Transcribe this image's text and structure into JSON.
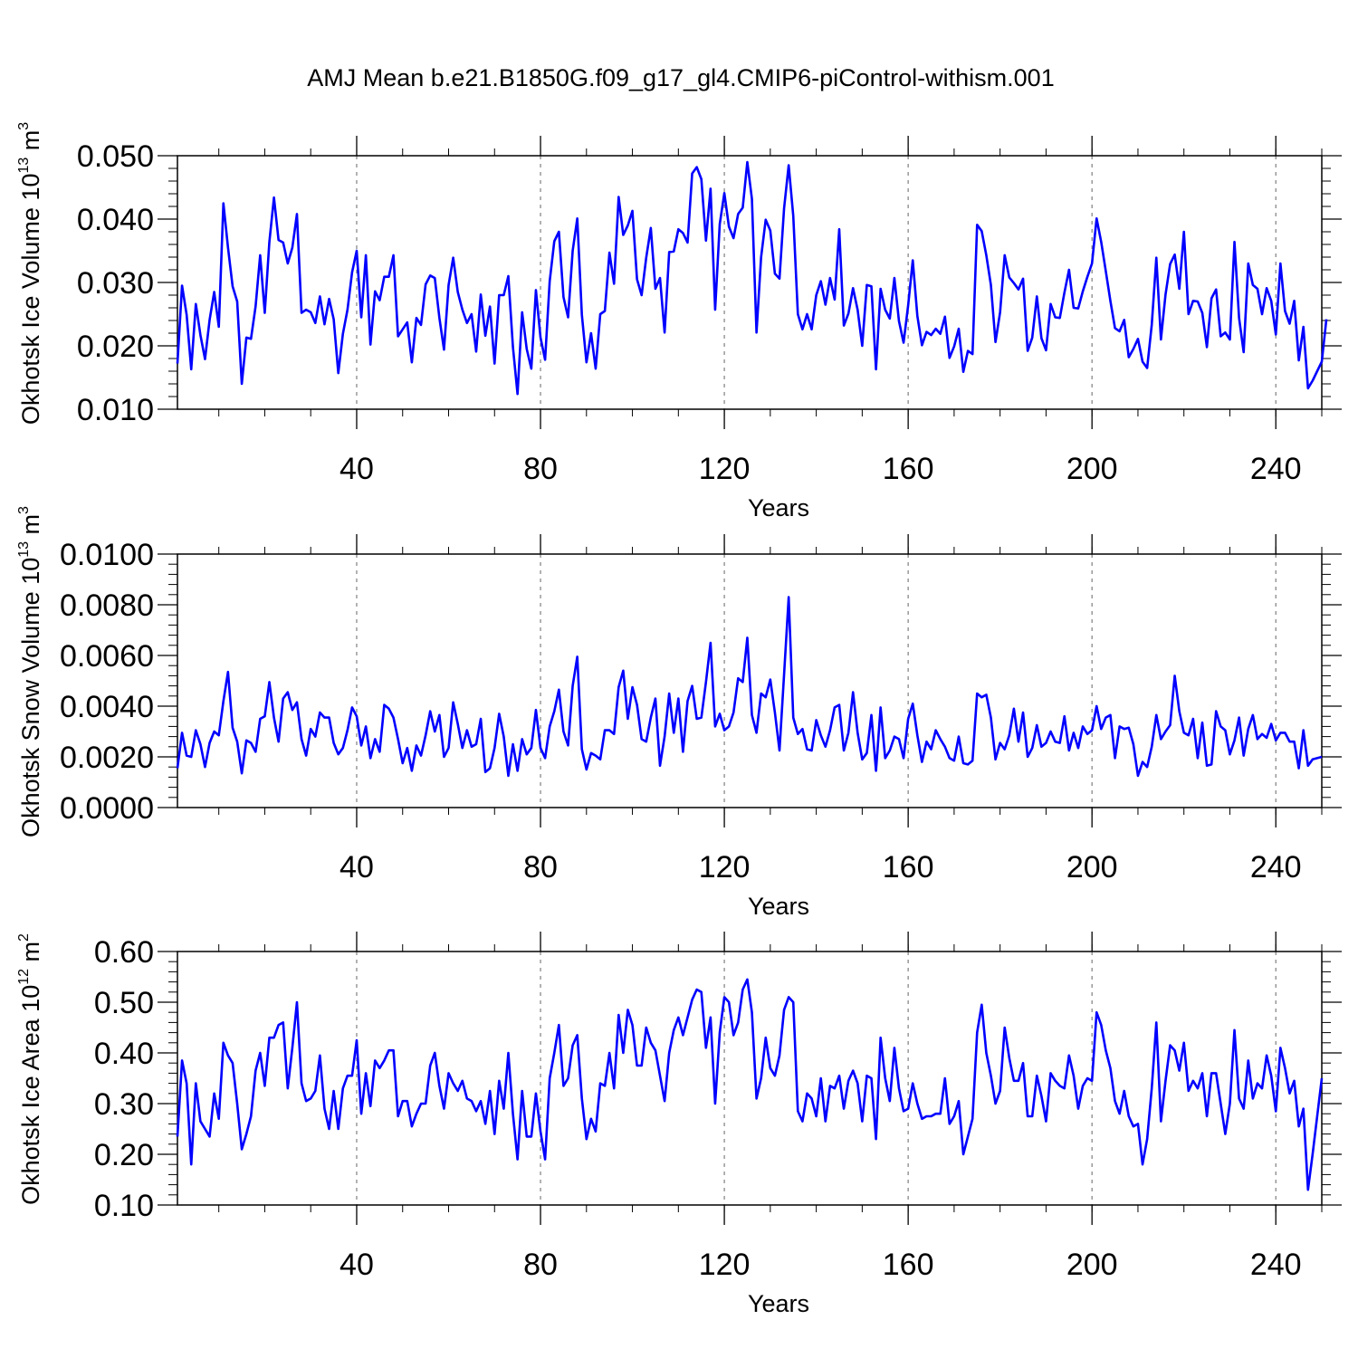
{
  "title": "AMJ Mean b.e21.B1850G.f09_g17_gl4.CMIP6-piControl-withism.001",
  "colors": {
    "series": "#0000ff",
    "axes": "#000000",
    "grid": "#7f7f7f"
  },
  "chart_data": [
    {
      "type": "line",
      "id": "ice-volume",
      "title": "AMJ Mean b.e21.B1850G.f09_g17_gl4.CMIP6-piControl-withism.001",
      "xlabel": "Years",
      "ylabel_main": "Okhotsk Ice Volume 10",
      "ylabel_exp": "13",
      "ylabel_unit": " m",
      "ylabel_unit_exp": "3",
      "xlim": [
        1,
        250
      ],
      "ylim": [
        0.01,
        0.05
      ],
      "xticks": [
        40,
        80,
        120,
        160,
        200,
        240
      ],
      "yticks": [
        0.01,
        0.02,
        0.03,
        0.04,
        0.05
      ],
      "ytick_labels": [
        "0.010",
        "0.020",
        "0.030",
        "0.040",
        "0.050"
      ],
      "ytick_minor": 0.002,
      "grid": "x-dashed",
      "series": [
        {
          "name": "Okhotsk Ice Volume",
          "values": [
            0.0172,
            0.0295,
            0.0249,
            0.0163,
            0.0266,
            0.0217,
            0.0179,
            0.0241,
            0.0285,
            0.023,
            0.0425,
            0.0355,
            0.0294,
            0.027,
            0.014,
            0.0213,
            0.0211,
            0.0262,
            0.0343,
            0.0252,
            0.0364,
            0.0434,
            0.0367,
            0.0363,
            0.033,
            0.0355,
            0.0408,
            0.0252,
            0.0257,
            0.0253,
            0.0236,
            0.0278,
            0.0234,
            0.0274,
            0.0242,
            0.0157,
            0.0219,
            0.0257,
            0.0316,
            0.035,
            0.0245,
            0.0343,
            0.0202,
            0.0286,
            0.0272,
            0.0309,
            0.0309,
            0.0343,
            0.0215,
            0.0226,
            0.0237,
            0.0174,
            0.0244,
            0.0233,
            0.0297,
            0.0311,
            0.0307,
            0.0244,
            0.0194,
            0.0296,
            0.0339,
            0.0285,
            0.0257,
            0.0236,
            0.025,
            0.0191,
            0.0281,
            0.0216,
            0.0262,
            0.0172,
            0.028,
            0.028,
            0.031,
            0.0198,
            0.0124,
            0.0253,
            0.0195,
            0.0164,
            0.0288,
            0.0213,
            0.0178,
            0.0302,
            0.0365,
            0.038,
            0.0277,
            0.0245,
            0.035,
            0.0401,
            0.0249,
            0.0174,
            0.022,
            0.0164,
            0.025,
            0.0255,
            0.0347,
            0.0298,
            0.0435,
            0.0375,
            0.039,
            0.0413,
            0.0305,
            0.028,
            0.0339,
            0.0386,
            0.029,
            0.0307,
            0.0221,
            0.0348,
            0.0349,
            0.0384,
            0.0378,
            0.0363,
            0.0472,
            0.0482,
            0.0463,
            0.0366,
            0.0448,
            0.0257,
            0.0392,
            0.0441,
            0.0388,
            0.037,
            0.0408,
            0.0418,
            0.049,
            0.0432,
            0.0221,
            0.034,
            0.0399,
            0.0382,
            0.0314,
            0.0306,
            0.0417,
            0.0485,
            0.0405,
            0.025,
            0.0226,
            0.025,
            0.0226,
            0.028,
            0.0302,
            0.0265,
            0.0307,
            0.0273,
            0.0384,
            0.0232,
            0.0251,
            0.0291,
            0.0257,
            0.02,
            0.0296,
            0.0294,
            0.0163,
            0.029,
            0.0257,
            0.0243,
            0.0307,
            0.0239,
            0.0205,
            0.0264,
            0.0335,
            0.0247,
            0.0201,
            0.0222,
            0.0217,
            0.0227,
            0.0219,
            0.0246,
            0.0181,
            0.0199,
            0.0227,
            0.0159,
            0.0192,
            0.0187,
            0.0391,
            0.0381,
            0.0343,
            0.0296,
            0.0206,
            0.0253,
            0.0343,
            0.0308,
            0.0299,
            0.0289,
            0.0306,
            0.0192,
            0.0213,
            0.0278,
            0.0212,
            0.0193,
            0.0266,
            0.0245,
            0.0244,
            0.0284,
            0.032,
            0.026,
            0.0259,
            0.0286,
            0.0309,
            0.033,
            0.0401,
            0.0364,
            0.0318,
            0.0271,
            0.0228,
            0.0223,
            0.0241,
            0.0182,
            0.0195,
            0.0211,
            0.0175,
            0.0165,
            0.0233,
            0.0339,
            0.021,
            0.0281,
            0.0329,
            0.0344,
            0.029,
            0.038,
            0.025,
            0.0271,
            0.027,
            0.0252,
            0.0198,
            0.0275,
            0.0289,
            0.0215,
            0.0221,
            0.021,
            0.0364,
            0.0244,
            0.019,
            0.033,
            0.0296,
            0.029,
            0.025,
            0.0291,
            0.0271,
            0.0218,
            0.033,
            0.0255,
            0.0235,
            0.0271,
            0.0177,
            0.023,
            0.0133,
            0.0145,
            0.016,
            0.0175,
            0.0242
          ]
        }
      ]
    },
    {
      "type": "line",
      "id": "snow-volume",
      "xlabel": "Years",
      "ylabel_main": "Okhotsk Snow Volume 10",
      "ylabel_exp": "13",
      "ylabel_unit": " m",
      "ylabel_unit_exp": "3",
      "xlim": [
        1,
        250
      ],
      "ylim": [
        0.0,
        0.01
      ],
      "xticks": [
        40,
        80,
        120,
        160,
        200,
        240
      ],
      "yticks": [
        0.0,
        0.002,
        0.004,
        0.006,
        0.008,
        0.01
      ],
      "ytick_labels": [
        "0.0000",
        "0.0020",
        "0.0040",
        "0.0060",
        "0.0080",
        "0.0100"
      ],
      "ytick_minor": 0.0004,
      "grid": "x-dashed",
      "series": [
        {
          "name": "Okhotsk Snow Volume",
          "values": [
            0.00155,
            0.00295,
            0.00205,
            0.002,
            0.00305,
            0.0025,
            0.0016,
            0.00255,
            0.003,
            0.00285,
            0.0042,
            0.00535,
            0.00315,
            0.0026,
            0.00135,
            0.00265,
            0.00255,
            0.0022,
            0.0035,
            0.0036,
            0.00495,
            0.00355,
            0.0026,
            0.0043,
            0.00455,
            0.00385,
            0.00415,
            0.0027,
            0.00205,
            0.0031,
            0.0028,
            0.00375,
            0.00355,
            0.00355,
            0.00255,
            0.0021,
            0.00235,
            0.00305,
            0.00395,
            0.0036,
            0.00245,
            0.0032,
            0.00195,
            0.0027,
            0.0022,
            0.00405,
            0.0039,
            0.00355,
            0.0027,
            0.00175,
            0.00235,
            0.00145,
            0.00245,
            0.00205,
            0.00285,
            0.0038,
            0.003,
            0.00365,
            0.002,
            0.00235,
            0.00415,
            0.0033,
            0.00235,
            0.00305,
            0.0024,
            0.0025,
            0.0035,
            0.0014,
            0.00155,
            0.00235,
            0.0037,
            0.0028,
            0.00125,
            0.0025,
            0.00145,
            0.0027,
            0.0021,
            0.00235,
            0.00385,
            0.00235,
            0.00195,
            0.0032,
            0.0038,
            0.00465,
            0.003,
            0.00245,
            0.0048,
            0.00595,
            0.0023,
            0.0015,
            0.00215,
            0.00205,
            0.0019,
            0.00305,
            0.00305,
            0.0029,
            0.00475,
            0.0054,
            0.0035,
            0.00475,
            0.00405,
            0.0027,
            0.0026,
            0.00355,
            0.0043,
            0.00165,
            0.0028,
            0.0045,
            0.00295,
            0.0043,
            0.0022,
            0.0042,
            0.0048,
            0.0035,
            0.00355,
            0.00495,
            0.0065,
            0.0032,
            0.0037,
            0.00305,
            0.0032,
            0.00375,
            0.0051,
            0.00495,
            0.0067,
            0.00365,
            0.00295,
            0.0045,
            0.00435,
            0.00505,
            0.00375,
            0.00225,
            0.00525,
            0.0083,
            0.00355,
            0.0029,
            0.0031,
            0.0023,
            0.00225,
            0.00345,
            0.00285,
            0.0024,
            0.00305,
            0.00395,
            0.00405,
            0.00225,
            0.00295,
            0.00455,
            0.00295,
            0.0019,
            0.00215,
            0.00365,
            0.00145,
            0.00395,
            0.00195,
            0.00225,
            0.0028,
            0.0027,
            0.00195,
            0.0035,
            0.0041,
            0.00285,
            0.0018,
            0.0026,
            0.0023,
            0.00305,
            0.0027,
            0.0024,
            0.00195,
            0.00185,
            0.0028,
            0.00175,
            0.0017,
            0.00185,
            0.0045,
            0.00435,
            0.00445,
            0.00355,
            0.0019,
            0.00255,
            0.0023,
            0.00285,
            0.0039,
            0.0026,
            0.00375,
            0.002,
            0.00235,
            0.00325,
            0.0024,
            0.00255,
            0.003,
            0.0026,
            0.00255,
            0.0036,
            0.00225,
            0.00295,
            0.00235,
            0.0032,
            0.0029,
            0.00305,
            0.004,
            0.0031,
            0.00355,
            0.00365,
            0.00195,
            0.0032,
            0.0031,
            0.00315,
            0.0025,
            0.00125,
            0.0018,
            0.0016,
            0.0024,
            0.00365,
            0.0027,
            0.003,
            0.00325,
            0.0052,
            0.0038,
            0.00295,
            0.00285,
            0.0035,
            0.00195,
            0.00335,
            0.00165,
            0.0017,
            0.0038,
            0.0032,
            0.00305,
            0.0021,
            0.00265,
            0.00355,
            0.00205,
            0.0031,
            0.00365,
            0.0027,
            0.0029,
            0.00275,
            0.0033,
            0.00265,
            0.00295,
            0.00295,
            0.0026,
            0.0026,
            0.00155,
            0.00305,
            0.00165,
            0.0019,
            0.00195,
            0.002
          ]
        }
      ]
    },
    {
      "type": "line",
      "id": "ice-area",
      "xlabel": "Years",
      "ylabel_main": "Okhotsk Ice Area 10",
      "ylabel_exp": "12",
      "ylabel_unit": " m",
      "ylabel_unit_exp": "2",
      "xlim": [
        1,
        250
      ],
      "ylim": [
        0.1,
        0.6
      ],
      "xticks": [
        40,
        80,
        120,
        160,
        200,
        240
      ],
      "yticks": [
        0.1,
        0.2,
        0.3,
        0.4,
        0.5,
        0.6
      ],
      "ytick_labels": [
        "0.10",
        "0.20",
        "0.30",
        "0.40",
        "0.50",
        "0.60"
      ],
      "ytick_minor": 0.02,
      "grid": "x-dashed",
      "series": [
        {
          "name": "Okhotsk Ice Area",
          "values": [
            0.235,
            0.385,
            0.34,
            0.18,
            0.34,
            0.265,
            0.25,
            0.235,
            0.32,
            0.27,
            0.42,
            0.395,
            0.38,
            0.3,
            0.21,
            0.24,
            0.275,
            0.365,
            0.4,
            0.335,
            0.43,
            0.43,
            0.455,
            0.46,
            0.33,
            0.41,
            0.5,
            0.34,
            0.305,
            0.31,
            0.325,
            0.395,
            0.29,
            0.25,
            0.325,
            0.25,
            0.33,
            0.355,
            0.355,
            0.425,
            0.28,
            0.36,
            0.295,
            0.385,
            0.37,
            0.385,
            0.405,
            0.405,
            0.275,
            0.305,
            0.305,
            0.255,
            0.28,
            0.3,
            0.3,
            0.375,
            0.4,
            0.335,
            0.29,
            0.36,
            0.34,
            0.325,
            0.345,
            0.31,
            0.305,
            0.285,
            0.305,
            0.26,
            0.325,
            0.24,
            0.345,
            0.29,
            0.4,
            0.28,
            0.19,
            0.325,
            0.235,
            0.235,
            0.32,
            0.245,
            0.19,
            0.35,
            0.4,
            0.455,
            0.335,
            0.35,
            0.415,
            0.435,
            0.31,
            0.23,
            0.27,
            0.245,
            0.34,
            0.335,
            0.4,
            0.33,
            0.475,
            0.4,
            0.485,
            0.455,
            0.375,
            0.375,
            0.45,
            0.42,
            0.405,
            0.355,
            0.305,
            0.4,
            0.445,
            0.47,
            0.435,
            0.47,
            0.505,
            0.525,
            0.52,
            0.41,
            0.47,
            0.3,
            0.44,
            0.51,
            0.5,
            0.435,
            0.46,
            0.525,
            0.545,
            0.48,
            0.31,
            0.35,
            0.43,
            0.37,
            0.355,
            0.395,
            0.485,
            0.51,
            0.5,
            0.285,
            0.265,
            0.32,
            0.31,
            0.275,
            0.35,
            0.265,
            0.335,
            0.33,
            0.355,
            0.29,
            0.345,
            0.365,
            0.34,
            0.265,
            0.355,
            0.35,
            0.23,
            0.43,
            0.35,
            0.305,
            0.41,
            0.33,
            0.285,
            0.29,
            0.34,
            0.3,
            0.27,
            0.275,
            0.275,
            0.28,
            0.28,
            0.35,
            0.26,
            0.275,
            0.305,
            0.2,
            0.235,
            0.27,
            0.44,
            0.495,
            0.4,
            0.355,
            0.3,
            0.325,
            0.45,
            0.39,
            0.345,
            0.345,
            0.38,
            0.275,
            0.275,
            0.355,
            0.315,
            0.265,
            0.36,
            0.345,
            0.335,
            0.33,
            0.395,
            0.355,
            0.29,
            0.335,
            0.35,
            0.345,
            0.48,
            0.455,
            0.405,
            0.37,
            0.305,
            0.28,
            0.325,
            0.275,
            0.255,
            0.26,
            0.18,
            0.23,
            0.33,
            0.46,
            0.265,
            0.345,
            0.415,
            0.405,
            0.365,
            0.42,
            0.325,
            0.345,
            0.33,
            0.36,
            0.275,
            0.36,
            0.36,
            0.3,
            0.24,
            0.3,
            0.445,
            0.31,
            0.29,
            0.385,
            0.31,
            0.34,
            0.33,
            0.395,
            0.355,
            0.285,
            0.41,
            0.37,
            0.32,
            0.345,
            0.255,
            0.29,
            0.13,
            0.2,
            0.275,
            0.35
          ]
        }
      ]
    }
  ]
}
